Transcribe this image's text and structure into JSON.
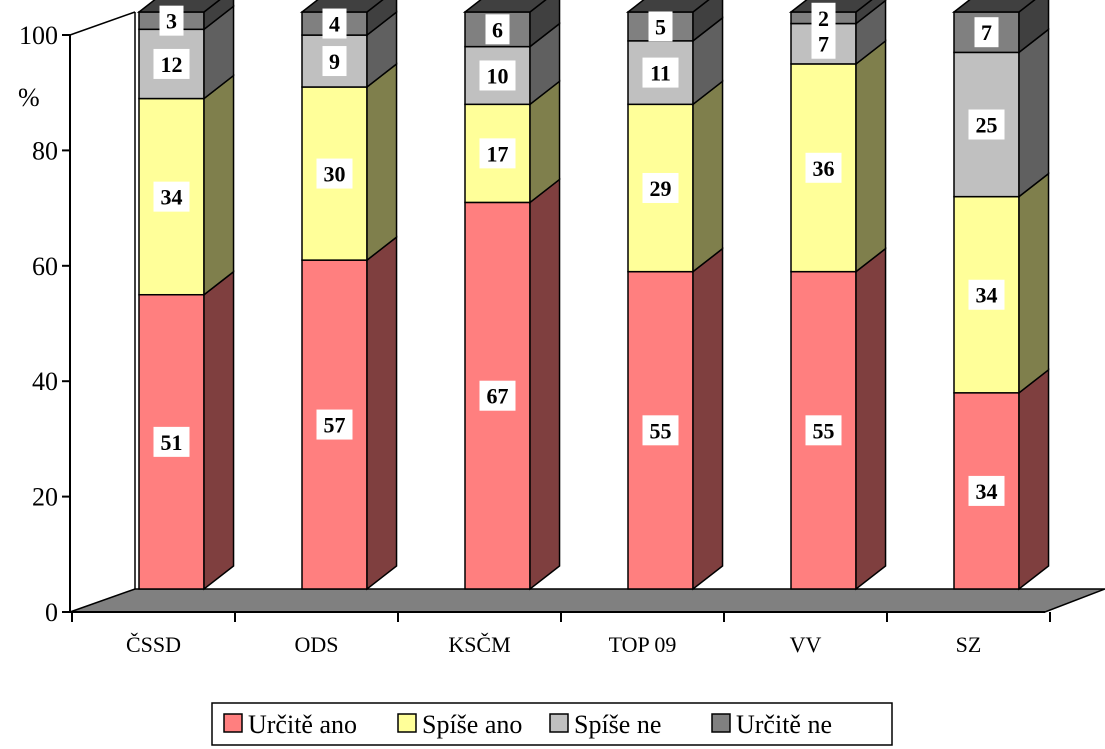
{
  "chart_data": {
    "type": "bar",
    "stacked": true,
    "three_d": true,
    "categories": [
      "ČSSD",
      "ODS",
      "KSČM",
      "TOP 09",
      "VV",
      "SZ"
    ],
    "series": [
      {
        "name": "Určitě ano",
        "values": [
          51,
          57,
          67,
          55,
          55,
          34
        ],
        "color": "#ff7f7f",
        "side_color": "#7f3f3f"
      },
      {
        "name": "Spíše ano",
        "values": [
          34,
          30,
          17,
          29,
          36,
          34
        ],
        "color": "#ffff99",
        "side_color": "#7f7f4c"
      },
      {
        "name": "Spíše ne",
        "values": [
          12,
          9,
          10,
          11,
          7,
          25
        ],
        "color": "#c0c0c0",
        "side_color": "#606060"
      },
      {
        "name": "Určitě ne",
        "values": [
          3,
          4,
          6,
          5,
          2,
          7
        ],
        "color": "#808080",
        "side_color": "#404040"
      }
    ],
    "ylabel": "%",
    "ylim": [
      0,
      100
    ],
    "yticks": [
      "0",
      "20",
      "40",
      "60",
      "80",
      "100"
    ],
    "floor_color": "#808080",
    "legend_position": "bottom",
    "grid": false
  }
}
